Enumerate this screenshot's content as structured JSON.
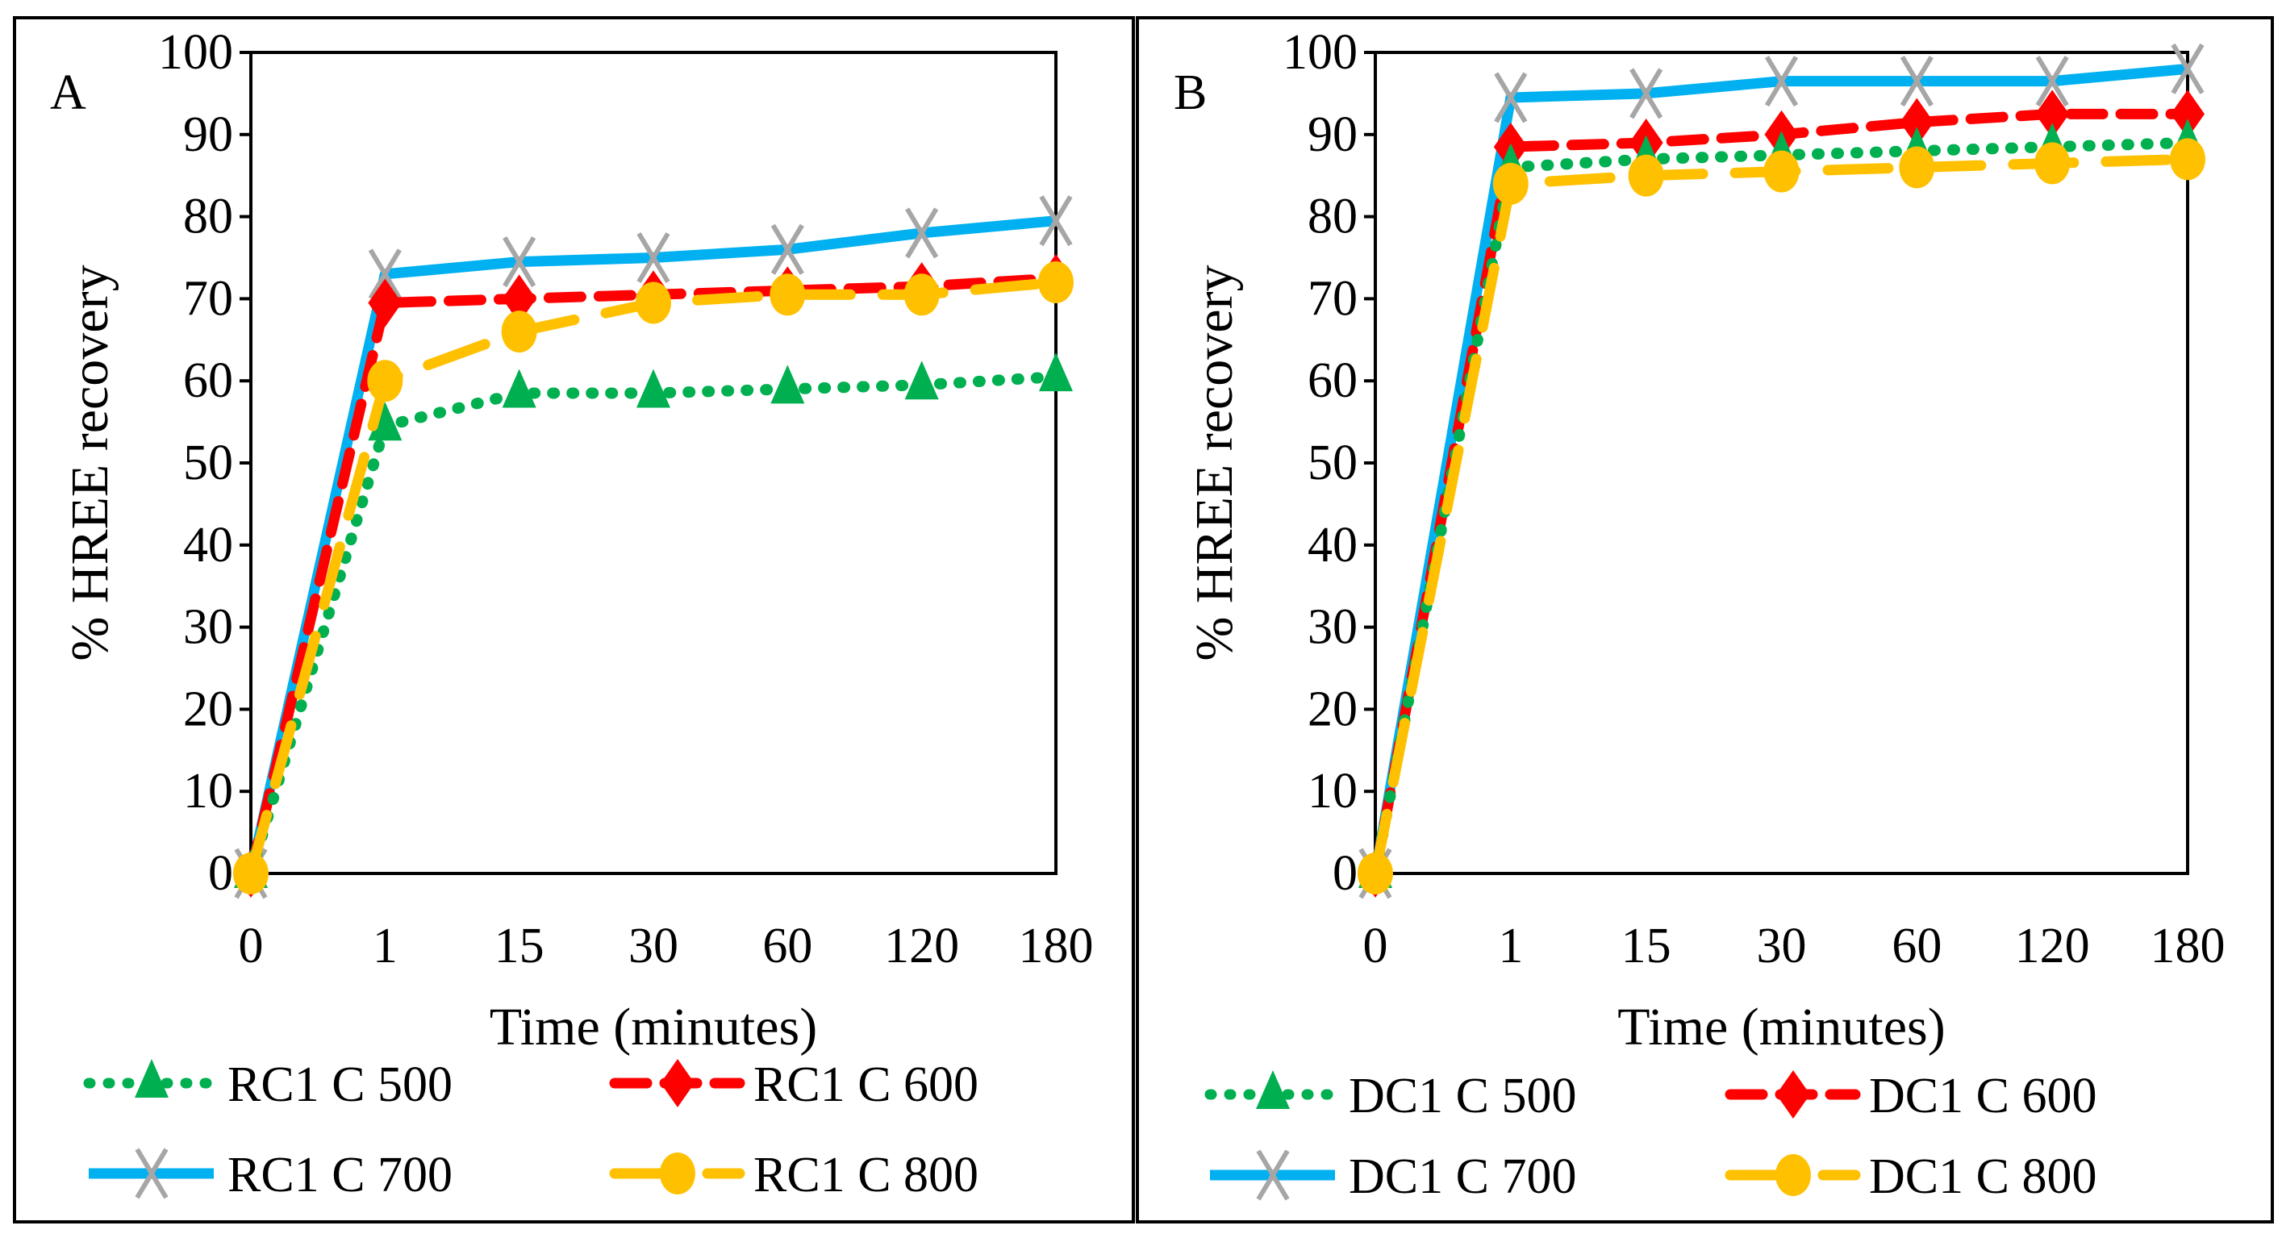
{
  "chart_data": [
    {
      "type": "line",
      "panel_label": "A",
      "xlabel": "Time (minutes)",
      "ylabel": "% HREE recovery",
      "categories": [
        "0",
        "1",
        "15",
        "30",
        "60",
        "120",
        "180"
      ],
      "ylim": [
        0,
        100
      ],
      "yticks": [
        0,
        10,
        20,
        30,
        40,
        50,
        60,
        70,
        80,
        90,
        100
      ],
      "series": [
        {
          "name": "RC1 C 500",
          "style": "dotted",
          "marker": "triangle",
          "color": "#00B050",
          "values": [
            0,
            54.5,
            58.5,
            58.5,
            59,
            59.5,
            60.5
          ]
        },
        {
          "name": "RC1 C 600",
          "style": "dashed",
          "marker": "diamond",
          "color": "#FF0000",
          "values": [
            0,
            69.5,
            70,
            70.5,
            71,
            71.5,
            72.5
          ]
        },
        {
          "name": "RC1 C 700",
          "style": "solid",
          "marker": "x",
          "color": "#00B0F0",
          "values": [
            0,
            73,
            74.5,
            75,
            76,
            78,
            79.5
          ]
        },
        {
          "name": "RC1 C 800",
          "style": "longdash",
          "marker": "circle",
          "color": "#FFC000",
          "values": [
            0,
            60,
            66,
            69.5,
            70.5,
            70.5,
            72
          ]
        }
      ]
    },
    {
      "type": "line",
      "panel_label": "B",
      "xlabel": "Time (minutes)",
      "ylabel": "% HREE recovery",
      "categories": [
        "0",
        "1",
        "15",
        "30",
        "60",
        "120",
        "180"
      ],
      "ylim": [
        0,
        100
      ],
      "yticks": [
        0,
        10,
        20,
        30,
        40,
        50,
        60,
        70,
        80,
        90,
        100
      ],
      "series": [
        {
          "name": "DC1 C 500",
          "style": "dotted",
          "marker": "triangle",
          "color": "#00B050",
          "values": [
            0,
            86,
            87,
            87.5,
            88,
            88.5,
            89
          ]
        },
        {
          "name": "DC1 C 600",
          "style": "dashed",
          "marker": "diamond",
          "color": "#FF0000",
          "values": [
            0,
            88.5,
            89,
            90,
            91.5,
            92.5,
            92.5
          ]
        },
        {
          "name": "DC1 C 700",
          "style": "solid",
          "marker": "x",
          "color": "#00B0F0",
          "values": [
            0,
            94.5,
            95,
            96.5,
            96.5,
            96.5,
            98
          ]
        },
        {
          "name": "DC1 C 800",
          "style": "longdash",
          "marker": "circle",
          "color": "#FFC000",
          "values": [
            0,
            84,
            85,
            85.5,
            86,
            86.5,
            87
          ]
        }
      ]
    }
  ]
}
